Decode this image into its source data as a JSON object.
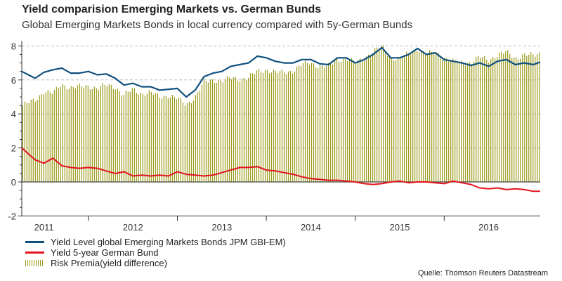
{
  "header": {
    "title": "Yield comparision Emerging Markets vs. German Bunds",
    "subtitle": "Global Emerging Markets Bonds in local currency compared with 5y-German Bunds"
  },
  "source": "Quelle: Thomson Reuters Datastream",
  "colors": {
    "em": "#0f4f7e",
    "bund": "#e3131b",
    "premia": "#9a9a1a",
    "grid": "#bbbbbb",
    "axis": "#333333"
  },
  "chart_data": {
    "type": "line",
    "title": "Yield comparision Emerging Markets vs. German Bunds",
    "subtitle": "Global Emerging Markets Bonds in local currency compared with 5y-German Bunds",
    "xlabel": "",
    "ylabel": "",
    "xlim": [
      2010.75,
      2016.58
    ],
    "ylim": [
      -2,
      8.5
    ],
    "yticks": [
      -2,
      0,
      2,
      4,
      6,
      8
    ],
    "ytick_labels": [
      "-2",
      "0",
      "2",
      "4",
      "6",
      "8"
    ],
    "year_labels": [
      "2011",
      "2012",
      "2013",
      "2014",
      "2015",
      "2016"
    ],
    "year_label_positions": [
      2011.0,
      2012.0,
      2013.0,
      2014.0,
      2015.0,
      2016.0
    ],
    "year_boundaries": [
      2011.5,
      2012.5,
      2013.5,
      2014.5,
      2015.5
    ],
    "grid": "horizontal dashed at 2, 4, 6, 8",
    "legend_position": "bottom-left",
    "x": [
      2010.75,
      2010.9,
      2011.0,
      2011.1,
      2011.2,
      2011.3,
      2011.4,
      2011.5,
      2011.6,
      2011.7,
      2011.8,
      2011.9,
      2012.0,
      2012.1,
      2012.2,
      2012.3,
      2012.4,
      2012.5,
      2012.6,
      2012.7,
      2012.8,
      2012.9,
      2013.0,
      2013.1,
      2013.2,
      2013.3,
      2013.4,
      2013.5,
      2013.6,
      2013.7,
      2013.8,
      2013.9,
      2014.0,
      2014.1,
      2014.2,
      2014.3,
      2014.4,
      2014.5,
      2014.6,
      2014.7,
      2014.8,
      2014.9,
      2015.0,
      2015.1,
      2015.2,
      2015.3,
      2015.4,
      2015.5,
      2015.6,
      2015.7,
      2015.8,
      2015.9,
      2016.0,
      2016.1,
      2016.2,
      2016.3,
      2016.4,
      2016.5,
      2016.58
    ],
    "series": [
      {
        "name": "Yield Level global Emerging Markets Bonds JPM GBI-EM)",
        "type": "line",
        "values": [
          6.5,
          6.1,
          6.45,
          6.6,
          6.7,
          6.4,
          6.4,
          6.5,
          6.3,
          6.35,
          6.1,
          5.7,
          5.8,
          5.6,
          5.6,
          5.4,
          5.45,
          5.5,
          5.0,
          5.4,
          6.2,
          6.4,
          6.5,
          6.8,
          6.9,
          7.0,
          7.4,
          7.3,
          7.1,
          7.0,
          7.0,
          7.2,
          7.2,
          6.95,
          6.9,
          7.3,
          7.3,
          7.0,
          7.2,
          7.5,
          7.9,
          7.3,
          7.3,
          7.5,
          7.85,
          7.5,
          7.6,
          7.2,
          7.1,
          7.0,
          6.85,
          7.0,
          6.8,
          7.1,
          7.2,
          6.9,
          7.0,
          6.9,
          7.05
        ]
      },
      {
        "name": "Yield 5-year German Bund",
        "type": "line",
        "values": [
          2.0,
          1.3,
          1.1,
          1.4,
          0.95,
          0.85,
          0.8,
          0.85,
          0.8,
          0.65,
          0.5,
          0.6,
          0.35,
          0.4,
          0.35,
          0.4,
          0.35,
          0.6,
          0.45,
          0.4,
          0.35,
          0.4,
          0.55,
          0.7,
          0.85,
          0.85,
          0.9,
          0.7,
          0.65,
          0.55,
          0.45,
          0.3,
          0.2,
          0.15,
          0.1,
          0.1,
          0.05,
          0.0,
          -0.1,
          -0.15,
          -0.1,
          0.0,
          0.05,
          -0.05,
          0.0,
          0.0,
          -0.05,
          -0.1,
          0.05,
          -0.05,
          -0.15,
          -0.35,
          -0.4,
          -0.35,
          -0.45,
          -0.4,
          -0.45,
          -0.55,
          -0.55
        ]
      },
      {
        "name": "Risk Premia(yield difference)",
        "type": "bar",
        "values": [
          4.5,
          4.8,
          5.35,
          5.2,
          5.75,
          5.55,
          5.6,
          5.65,
          5.5,
          5.7,
          5.6,
          5.1,
          5.45,
          5.2,
          5.25,
          5.0,
          5.1,
          4.9,
          4.55,
          5.0,
          5.85,
          6.0,
          5.95,
          6.1,
          6.05,
          6.15,
          6.5,
          6.6,
          6.45,
          6.45,
          6.55,
          6.9,
          7.0,
          6.8,
          6.8,
          7.2,
          7.25,
          7.0,
          7.3,
          7.65,
          8.0,
          7.3,
          7.25,
          7.55,
          7.85,
          7.5,
          7.65,
          7.3,
          7.05,
          7.05,
          7.0,
          7.35,
          7.2,
          7.45,
          7.65,
          7.3,
          7.45,
          7.45,
          7.6
        ]
      }
    ]
  }
}
